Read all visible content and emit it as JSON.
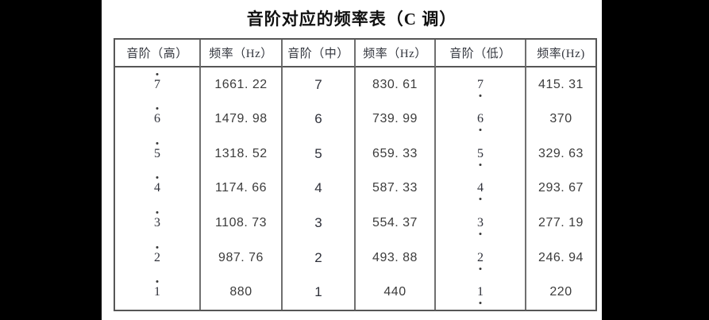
{
  "title": "音阶对应的频率表（C 调）",
  "colors": {
    "side_bars": "#000000",
    "page_background": "#ffffff",
    "table_border": "#565656",
    "inner_line": "#6f6f6f",
    "text": "#35373f"
  },
  "table": {
    "headers": [
      "音阶（高）",
      "频率（Hz）",
      "音阶（中）",
      "频率（Hz）",
      "音阶（低）",
      "频率(Hz)"
    ],
    "octave_notation": {
      "high_column": "dot above digit",
      "middle_column": "no dot",
      "low_column": "dot below digit"
    },
    "rows": [
      [
        "7",
        "1661. 22",
        "7",
        "830. 61",
        "7",
        "415. 31"
      ],
      [
        "6",
        "1479. 98",
        "6",
        "739. 99",
        "6",
        "370"
      ],
      [
        "5",
        "1318. 52",
        "5",
        "659. 33",
        "5",
        "329. 63"
      ],
      [
        "4",
        "1174. 66",
        "4",
        "587. 33",
        "4",
        "293. 67"
      ],
      [
        "3",
        "1108. 73",
        "3",
        "554. 37",
        "3",
        "277. 19"
      ],
      [
        "2",
        "987. 76",
        "2",
        "493. 88",
        "2",
        "246. 94"
      ],
      [
        "1",
        "880",
        "1",
        "440",
        "1",
        "220"
      ]
    ]
  }
}
